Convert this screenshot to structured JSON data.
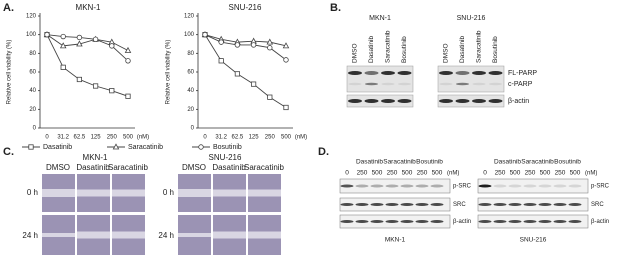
{
  "panel_labels": [
    "A.",
    "B.",
    "C.",
    "D."
  ],
  "chart_data": [
    {
      "type": "line",
      "title": "MKN-1",
      "y_label": "Relative cell viability (%)",
      "x_unit": "(nM)",
      "categories": [
        "0",
        "31.2",
        "62.5",
        "125",
        "250",
        "500"
      ],
      "ylim": [
        0,
        120
      ],
      "yticks": [
        0,
        20,
        40,
        60,
        80,
        100,
        120
      ],
      "legend": true,
      "series": [
        {
          "name": "Dasatinib",
          "marker": "square",
          "color": "#444",
          "values": [
            100,
            65,
            52,
            45,
            40,
            34
          ]
        },
        {
          "name": "Saracatinib",
          "marker": "triangle",
          "color": "#444",
          "values": [
            100,
            88,
            90,
            95,
            92,
            83
          ]
        },
        {
          "name": "Bosutinib",
          "marker": "circle",
          "color": "#444",
          "values": [
            100,
            98,
            97,
            95,
            88,
            72
          ]
        }
      ]
    },
    {
      "type": "line",
      "title": "SNU-216",
      "y_label": "Relative cell viability (%)",
      "x_unit": "(nM)",
      "categories": [
        "0",
        "31.2",
        "62.5",
        "125",
        "250",
        "500"
      ],
      "ylim": [
        0,
        120
      ],
      "yticks": [
        0,
        20,
        40,
        60,
        80,
        100,
        120
      ],
      "legend": false,
      "series": [
        {
          "marker": "square",
          "color": "#444",
          "values": [
            100,
            72,
            58,
            47,
            33,
            22
          ]
        },
        {
          "marker": "triangle",
          "color": "#444",
          "values": [
            100,
            95,
            92,
            93,
            92,
            88
          ]
        },
        {
          "marker": "circle",
          "color": "#444",
          "values": [
            100,
            92,
            89,
            89,
            86,
            73
          ]
        }
      ]
    }
  ],
  "panel_b": {
    "cell_lines": [
      "MKN-1",
      "SNU-216"
    ],
    "lanes": [
      "DMSO",
      "Dasatinib",
      "Saracatinib",
      "Bosutinib"
    ],
    "bands": [
      "FL-PARP",
      "c-PARP",
      "β-actin"
    ]
  },
  "panel_c": {
    "cell_lines": [
      "MKN-1",
      "SNU-216"
    ],
    "columns": [
      "DMSO",
      "Dasatinib",
      "Saracatinib"
    ],
    "rows": [
      "0 h",
      "24 h"
    ]
  },
  "panel_d": {
    "cell_lines": [
      "MKN-1",
      "SNU-216"
    ],
    "drugs": [
      "Dasatinib",
      "Saracatinib",
      "Bosutinib"
    ],
    "doses": [
      "0",
      "250",
      "500",
      "250",
      "500",
      "250",
      "500"
    ],
    "dose_unit": "(nM)",
    "bands": [
      "p-SRC",
      "SRC",
      "β-actin"
    ]
  }
}
